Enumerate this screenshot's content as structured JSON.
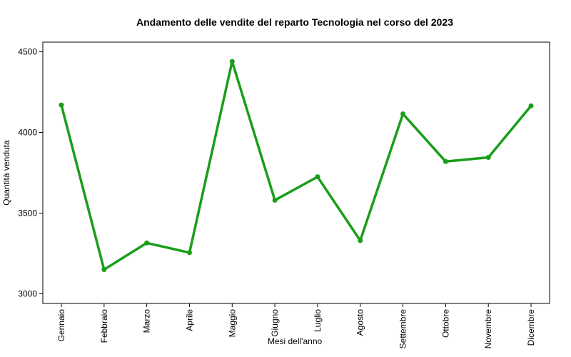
{
  "chart_data": {
    "type": "line",
    "title": "Andamento delle vendite del reparto Tecnologia nel corso del 2023",
    "xlabel": "Mesi dell'anno",
    "ylabel": "Quantità venduta",
    "categories": [
      "Gennaio",
      "Febbraio",
      "Marzo",
      "Aprile",
      "Maggio",
      "Giugno",
      "Luglio",
      "Agosto",
      "Settembre",
      "Ottobre",
      "Novembre",
      "Dicembre"
    ],
    "values": [
      4170,
      3150,
      3315,
      3255,
      4440,
      3580,
      3725,
      3330,
      4115,
      3820,
      3845,
      4165
    ],
    "ylim": [
      2940,
      4560
    ],
    "yticks": [
      3000,
      3500,
      4000,
      4500
    ],
    "grid": false,
    "line_color": "#1a9e1a"
  }
}
